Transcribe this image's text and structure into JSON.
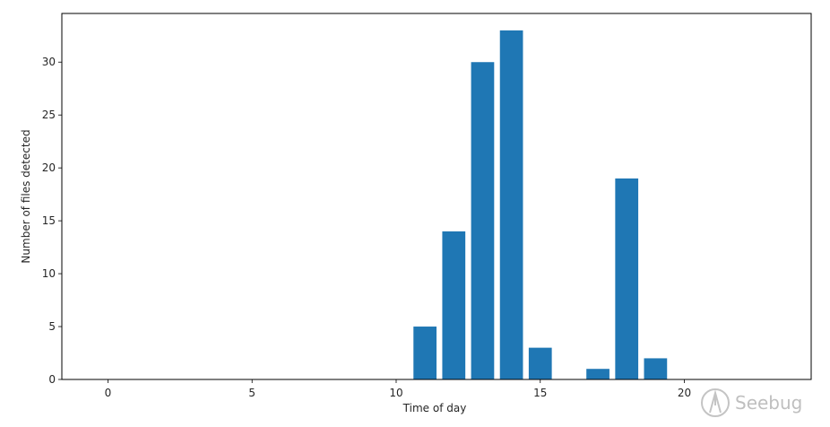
{
  "chart_data": {
    "type": "bar",
    "title": "",
    "xlabel": "Time of day",
    "ylabel": "Number of files detected",
    "x": [
      11,
      12,
      13,
      14,
      15,
      17,
      18,
      19
    ],
    "values": [
      5,
      14,
      30,
      33,
      3,
      1,
      19,
      2
    ],
    "xlim": [
      -1.6,
      24.4
    ],
    "ylim": [
      0,
      34.6
    ],
    "xticks": [
      0,
      5,
      10,
      15,
      20
    ],
    "yticks": [
      0,
      5,
      10,
      15,
      20,
      25,
      30
    ],
    "bar_width": 0.8,
    "bar_color": "#1f77b4",
    "grid": false,
    "legend": "none"
  },
  "watermark": {
    "text": "Seebug",
    "icon": "seebug-logo-icon"
  }
}
